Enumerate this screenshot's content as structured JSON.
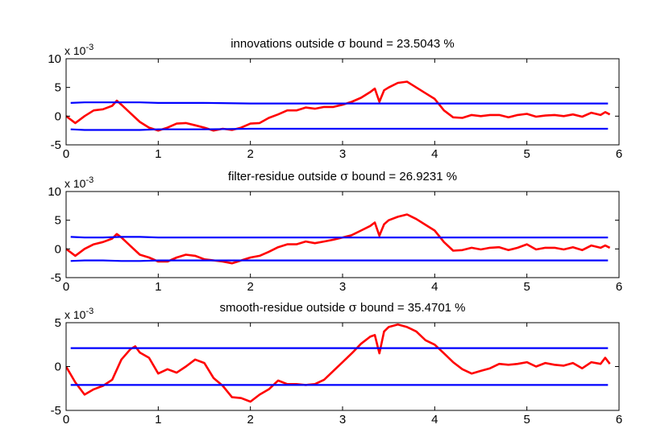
{
  "chart_data": [
    {
      "type": "line",
      "title_prefix": "innovations outside ",
      "title_symbol": "σ",
      "title_suffix": " bound = 23.5043 %",
      "multiplier": "x 10",
      "multiplier_exp": "-3",
      "xlim": [
        0,
        6
      ],
      "ylim": [
        -5,
        10
      ],
      "xticks": [
        "0",
        "1",
        "2",
        "3",
        "4",
        "5",
        "6"
      ],
      "yticks": [
        "-5",
        "0",
        "5",
        "10"
      ],
      "series": [
        {
          "color": "#ff0000",
          "x": [
            0.0,
            0.1,
            0.2,
            0.3,
            0.4,
            0.5,
            0.55,
            0.6,
            0.7,
            0.8,
            0.9,
            1.0,
            1.1,
            1.2,
            1.3,
            1.4,
            1.5,
            1.6,
            1.7,
            1.8,
            1.9,
            2.0,
            2.1,
            2.2,
            2.3,
            2.4,
            2.5,
            2.6,
            2.7,
            2.8,
            2.9,
            3.0,
            3.1,
            3.2,
            3.3,
            3.35,
            3.4,
            3.45,
            3.5,
            3.6,
            3.7,
            3.8,
            3.9,
            4.0,
            4.1,
            4.2,
            4.3,
            4.4,
            4.5,
            4.6,
            4.7,
            4.8,
            4.9,
            5.0,
            5.1,
            5.2,
            5.3,
            5.4,
            5.5,
            5.6,
            5.7,
            5.8,
            5.85,
            5.9
          ],
          "values": [
            0.0,
            -1.2,
            0.0,
            1.0,
            1.2,
            1.8,
            2.7,
            2.0,
            0.5,
            -1.0,
            -2.0,
            -2.5,
            -2.0,
            -1.3,
            -1.2,
            -1.6,
            -2.0,
            -2.5,
            -2.2,
            -2.4,
            -2.0,
            -1.3,
            -1.2,
            -0.3,
            0.3,
            1.0,
            1.0,
            1.5,
            1.3,
            1.6,
            1.6,
            2.0,
            2.5,
            3.2,
            4.2,
            4.8,
            2.5,
            4.5,
            5.0,
            5.8,
            6.0,
            5.0,
            4.0,
            3.0,
            1.0,
            -0.2,
            -0.3,
            0.2,
            0.0,
            0.2,
            0.2,
            -0.2,
            0.2,
            0.4,
            -0.1,
            0.1,
            0.2,
            0.0,
            0.3,
            -0.1,
            0.6,
            0.2,
            0.7,
            0.3
          ]
        },
        {
          "color": "#0000ff",
          "x": [
            0.05,
            0.2,
            0.4,
            0.6,
            0.8,
            1.0,
            1.5,
            2.0,
            3.0,
            4.0,
            5.0,
            5.88
          ],
          "values": [
            2.3,
            2.4,
            2.4,
            2.4,
            2.4,
            2.3,
            2.3,
            2.2,
            2.2,
            2.2,
            2.2,
            2.2
          ]
        },
        {
          "color": "#0000ff",
          "x": [
            0.05,
            0.2,
            0.4,
            0.6,
            0.8,
            1.0,
            1.5,
            2.0,
            3.0,
            4.0,
            5.0,
            5.88
          ],
          "values": [
            -2.3,
            -2.4,
            -2.4,
            -2.4,
            -2.4,
            -2.3,
            -2.3,
            -2.2,
            -2.2,
            -2.2,
            -2.2,
            -2.2
          ]
        }
      ]
    },
    {
      "type": "line",
      "title_prefix": "filter-residue outside ",
      "title_symbol": "σ",
      "title_suffix": " bound = 26.9231 %",
      "multiplier": "x 10",
      "multiplier_exp": "-3",
      "xlim": [
        0,
        6
      ],
      "ylim": [
        -5,
        10
      ],
      "xticks": [
        "0",
        "1",
        "2",
        "3",
        "4",
        "5",
        "6"
      ],
      "yticks": [
        "-5",
        "0",
        "5",
        "10"
      ],
      "series": [
        {
          "color": "#ff0000",
          "x": [
            0.0,
            0.1,
            0.2,
            0.3,
            0.4,
            0.5,
            0.55,
            0.6,
            0.7,
            0.8,
            0.9,
            1.0,
            1.1,
            1.2,
            1.3,
            1.4,
            1.5,
            1.6,
            1.7,
            1.8,
            1.9,
            2.0,
            2.1,
            2.2,
            2.3,
            2.4,
            2.5,
            2.6,
            2.7,
            2.8,
            2.9,
            3.0,
            3.1,
            3.2,
            3.3,
            3.35,
            3.4,
            3.45,
            3.5,
            3.6,
            3.7,
            3.8,
            3.9,
            4.0,
            4.1,
            4.2,
            4.3,
            4.4,
            4.5,
            4.6,
            4.7,
            4.8,
            4.9,
            5.0,
            5.1,
            5.2,
            5.3,
            5.4,
            5.5,
            5.6,
            5.7,
            5.8,
            5.85,
            5.9
          ],
          "values": [
            0.0,
            -1.2,
            0.0,
            0.8,
            1.2,
            1.8,
            2.6,
            2.0,
            0.5,
            -1.0,
            -1.5,
            -2.2,
            -2.2,
            -1.5,
            -1.0,
            -1.2,
            -1.8,
            -2.0,
            -2.2,
            -2.5,
            -2.0,
            -1.5,
            -1.2,
            -0.5,
            0.3,
            0.8,
            0.8,
            1.3,
            1.0,
            1.3,
            1.6,
            2.0,
            2.4,
            3.2,
            4.0,
            4.6,
            2.3,
            4.3,
            5.0,
            5.6,
            6.0,
            5.2,
            4.2,
            3.2,
            1.2,
            -0.3,
            -0.2,
            0.2,
            -0.1,
            0.2,
            0.3,
            -0.2,
            0.2,
            0.8,
            -0.1,
            0.2,
            0.2,
            -0.1,
            0.3,
            -0.2,
            0.6,
            0.2,
            0.6,
            0.2
          ]
        },
        {
          "color": "#0000ff",
          "x": [
            0.05,
            0.2,
            0.4,
            0.6,
            0.8,
            1.0,
            1.5,
            2.0,
            3.0,
            4.0,
            5.0,
            5.88
          ],
          "values": [
            2.1,
            2.0,
            2.0,
            2.1,
            2.1,
            2.0,
            2.0,
            2.0,
            2.0,
            2.0,
            2.0,
            2.0
          ]
        },
        {
          "color": "#0000ff",
          "x": [
            0.05,
            0.2,
            0.4,
            0.6,
            0.8,
            1.0,
            1.5,
            2.0,
            3.0,
            4.0,
            5.0,
            5.88
          ],
          "values": [
            -2.1,
            -2.0,
            -2.0,
            -2.1,
            -2.1,
            -2.0,
            -2.0,
            -2.0,
            -2.0,
            -2.0,
            -2.0,
            -2.0
          ]
        }
      ]
    },
    {
      "type": "line",
      "title_prefix": "smooth-residue outside ",
      "title_symbol": "σ",
      "title_suffix": " bound = 35.4701 %",
      "multiplier": "x 10",
      "multiplier_exp": "-3",
      "xlim": [
        0,
        6
      ],
      "ylim": [
        -5,
        5
      ],
      "xticks": [
        "0",
        "1",
        "2",
        "3",
        "4",
        "5",
        "6"
      ],
      "yticks": [
        "-5",
        "0",
        "5"
      ],
      "series": [
        {
          "color": "#ff0000",
          "x": [
            0.0,
            0.1,
            0.2,
            0.3,
            0.4,
            0.5,
            0.6,
            0.7,
            0.75,
            0.8,
            0.9,
            1.0,
            1.1,
            1.2,
            1.3,
            1.4,
            1.5,
            1.6,
            1.7,
            1.8,
            1.9,
            2.0,
            2.1,
            2.2,
            2.3,
            2.4,
            2.5,
            2.6,
            2.7,
            2.8,
            2.9,
            3.0,
            3.1,
            3.2,
            3.3,
            3.35,
            3.4,
            3.45,
            3.5,
            3.6,
            3.7,
            3.8,
            3.9,
            4.0,
            4.1,
            4.2,
            4.3,
            4.4,
            4.5,
            4.6,
            4.7,
            4.8,
            4.9,
            5.0,
            5.1,
            5.2,
            5.3,
            5.4,
            5.5,
            5.6,
            5.7,
            5.8,
            5.85,
            5.9
          ],
          "values": [
            0.0,
            -1.8,
            -3.2,
            -2.6,
            -2.2,
            -1.5,
            0.8,
            2.0,
            2.3,
            1.6,
            1.0,
            -0.8,
            -0.3,
            -0.7,
            0.0,
            0.8,
            0.4,
            -1.3,
            -2.2,
            -3.5,
            -3.6,
            -4.0,
            -3.2,
            -2.6,
            -1.6,
            -2.0,
            -2.0,
            -2.1,
            -2.0,
            -1.5,
            -0.5,
            0.5,
            1.5,
            2.6,
            3.4,
            3.6,
            1.5,
            4.0,
            4.5,
            4.8,
            4.5,
            4.0,
            3.0,
            2.5,
            1.5,
            0.5,
            -0.3,
            -0.8,
            -0.5,
            -0.2,
            0.3,
            0.2,
            0.3,
            0.5,
            0.0,
            0.4,
            0.2,
            0.1,
            0.4,
            -0.2,
            0.5,
            0.3,
            1.0,
            0.3
          ]
        },
        {
          "color": "#0000ff",
          "x": [
            0.05,
            1.0,
            2.0,
            3.0,
            4.0,
            5.0,
            5.88
          ],
          "values": [
            2.1,
            2.1,
            2.1,
            2.1,
            2.1,
            2.1,
            2.1
          ]
        },
        {
          "color": "#0000ff",
          "x": [
            0.05,
            1.0,
            2.0,
            3.0,
            4.0,
            5.0,
            5.88
          ],
          "values": [
            -2.1,
            -2.1,
            -2.1,
            -2.1,
            -2.1,
            -2.1,
            -2.1
          ]
        }
      ]
    }
  ]
}
